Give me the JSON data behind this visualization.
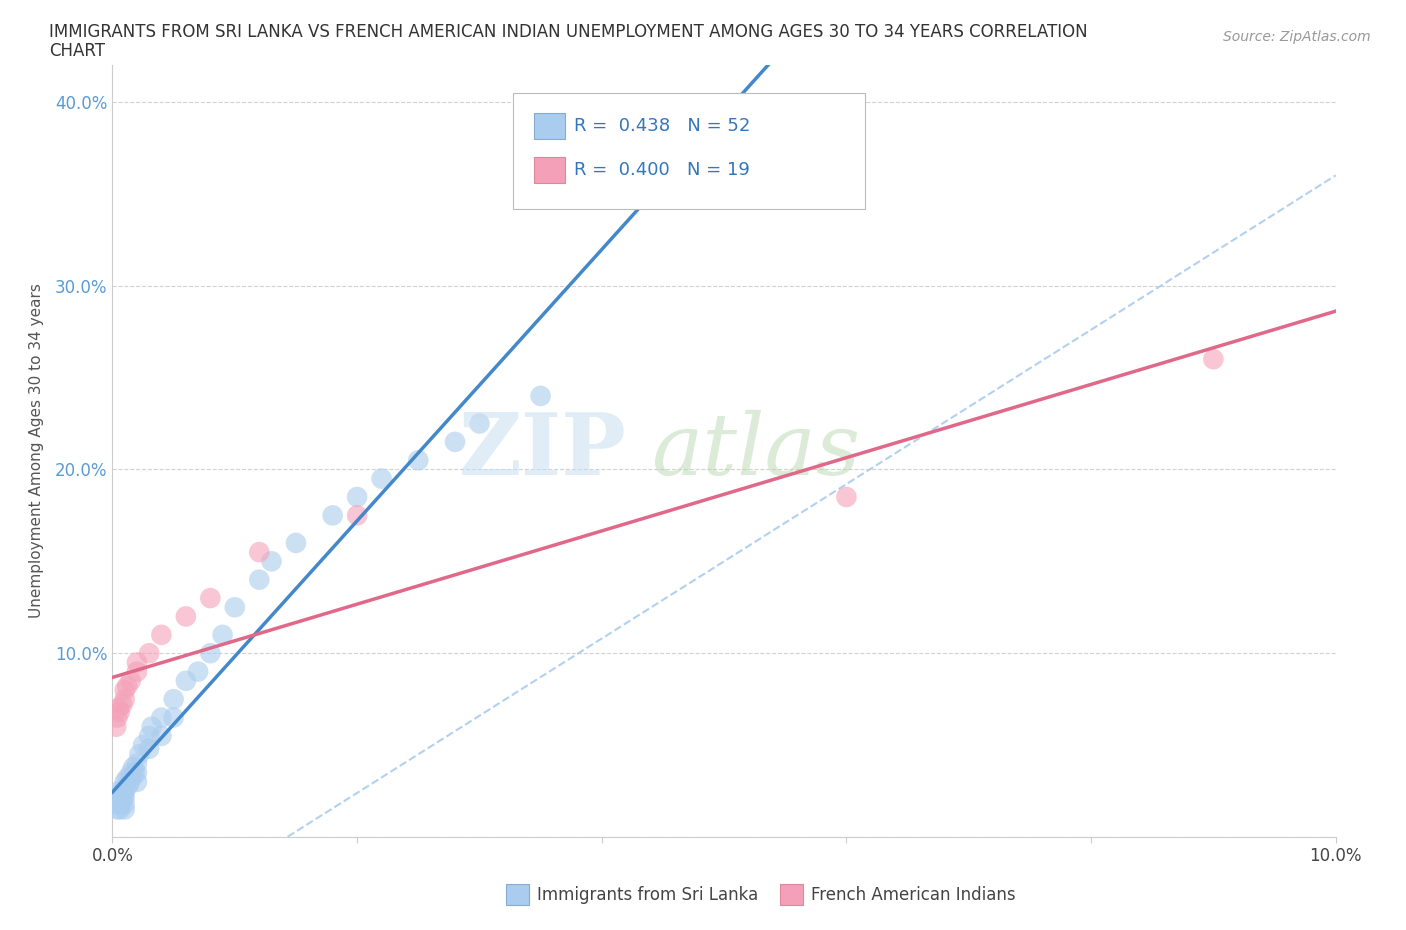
{
  "title_line1": "IMMIGRANTS FROM SRI LANKA VS FRENCH AMERICAN INDIAN UNEMPLOYMENT AMONG AGES 30 TO 34 YEARS CORRELATION",
  "title_line2": "CHART",
  "source": "Source: ZipAtlas.com",
  "ylabel": "Unemployment Among Ages 30 to 34 years",
  "xlim": [
    0.0,
    0.1
  ],
  "ylim": [
    0.0,
    0.42
  ],
  "sri_lanka_color": "#aaccee",
  "sri_lanka_alpha": 0.6,
  "french_indian_color": "#f4a0b8",
  "french_indian_alpha": 0.6,
  "trend_sri_lanka_color": "#4488cc",
  "trend_french_color": "#e06888",
  "trend_dashed_color": "#aaccee",
  "legend_R1": "0.438",
  "legend_N1": "52",
  "legend_R2": "0.400",
  "legend_N2": "19",
  "sri_lanka_x": [
    0.0002,
    0.0003,
    0.0004,
    0.0004,
    0.0005,
    0.0005,
    0.0006,
    0.0006,
    0.0007,
    0.0007,
    0.0008,
    0.0008,
    0.0009,
    0.001,
    0.001,
    0.001,
    0.001,
    0.001,
    0.0012,
    0.0013,
    0.0014,
    0.0015,
    0.0016,
    0.0017,
    0.0018,
    0.002,
    0.002,
    0.002,
    0.0022,
    0.0025,
    0.003,
    0.003,
    0.0032,
    0.004,
    0.004,
    0.005,
    0.005,
    0.006,
    0.007,
    0.008,
    0.009,
    0.01,
    0.012,
    0.013,
    0.015,
    0.018,
    0.02,
    0.022,
    0.025,
    0.028,
    0.03,
    0.035
  ],
  "sri_lanka_y": [
    0.02,
    0.018,
    0.022,
    0.015,
    0.025,
    0.018,
    0.02,
    0.015,
    0.022,
    0.018,
    0.025,
    0.02,
    0.022,
    0.03,
    0.025,
    0.022,
    0.018,
    0.015,
    0.032,
    0.028,
    0.03,
    0.035,
    0.032,
    0.038,
    0.035,
    0.04,
    0.035,
    0.03,
    0.045,
    0.05,
    0.055,
    0.048,
    0.06,
    0.065,
    0.055,
    0.075,
    0.065,
    0.085,
    0.09,
    0.1,
    0.11,
    0.125,
    0.14,
    0.15,
    0.16,
    0.175,
    0.185,
    0.195,
    0.205,
    0.215,
    0.225,
    0.24
  ],
  "french_x": [
    0.0003,
    0.0004,
    0.0005,
    0.0006,
    0.0008,
    0.001,
    0.001,
    0.0012,
    0.0015,
    0.002,
    0.002,
    0.003,
    0.004,
    0.006,
    0.008,
    0.012,
    0.02,
    0.06,
    0.09
  ],
  "french_y": [
    0.06,
    0.065,
    0.07,
    0.068,
    0.072,
    0.075,
    0.08,
    0.082,
    0.085,
    0.09,
    0.095,
    0.1,
    0.11,
    0.12,
    0.13,
    0.155,
    0.175,
    0.185,
    0.26
  ]
}
